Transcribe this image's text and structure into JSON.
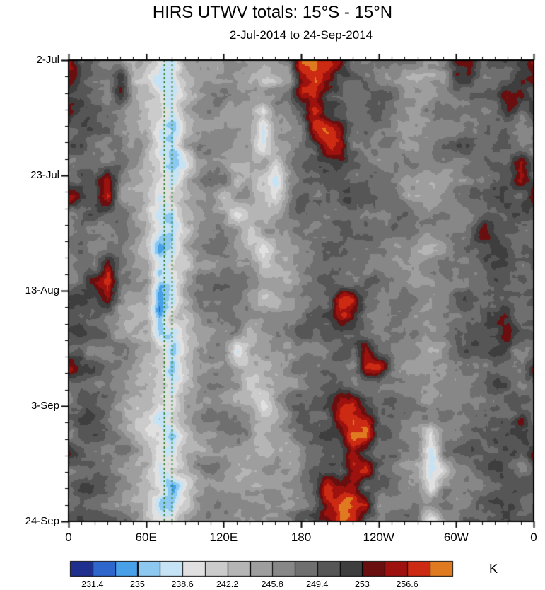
{
  "chart_data": {
    "type": "heatmap",
    "title": "HIRS UTWV totals: 15°S - 15°N",
    "subtitle": "2-Jul-2014 to 24-Sep-2014",
    "units": "K",
    "x_ticks": [
      "0",
      "60E",
      "120E",
      "180",
      "120W",
      "60W",
      "0"
    ],
    "x_minor_per_major": 6,
    "y_ticks": [
      "2-Jul",
      "23-Jul",
      "13-Aug",
      "3-Sep",
      "24-Sep"
    ],
    "y_minor_per_major": 7,
    "levels_min": 229.6,
    "levels_step": 1.8,
    "colorbar_labels": [
      "231.4",
      "235",
      "238.6",
      "242.2",
      "245.8",
      "249.4",
      "253",
      "256.6"
    ],
    "colors": [
      "#1e2f8e",
      "#2e66cc",
      "#47a0e8",
      "#8cc8f0",
      "#c6e3f5",
      "#e0e0e0",
      "#cbcbcb",
      "#b5b5b5",
      "#9e9e9e",
      "#878787",
      "#6f6f6f",
      "#565656",
      "#3e3e3e",
      "#6a0f0f",
      "#9d120e",
      "#cc2a12",
      "#e07a20"
    ],
    "reference_lines": {
      "color": "#267d26",
      "style": "dashed",
      "longitudes_deg": [
        74,
        80
      ]
    },
    "grid": {
      "cols": 36,
      "rows": 28,
      "lon_range_deg": [
        0,
        360
      ],
      "time_range": [
        "2-Jul-2014",
        "24-Sep-2014"
      ],
      "values_K": [
        [
          256,
          250,
          249,
          248,
          247,
          245,
          243,
          238,
          237,
          243,
          246,
          247,
          247,
          246,
          245,
          244,
          245,
          246,
          257,
          258,
          257,
          255,
          249,
          249,
          248,
          248,
          247,
          246,
          246,
          247,
          254,
          256,
          249,
          250,
          250,
          252
        ],
        [
          255,
          250,
          249,
          248,
          255,
          245,
          243,
          239,
          238,
          243,
          246,
          247,
          247,
          246,
          245,
          244,
          245,
          246,
          256,
          257,
          256,
          250,
          249,
          249,
          248,
          248,
          247,
          246,
          246,
          247,
          253,
          254,
          249,
          250,
          250,
          255
        ],
        [
          249,
          250,
          249,
          248,
          254,
          245,
          243,
          241,
          240,
          243,
          246,
          247,
          247,
          246,
          245,
          244,
          245,
          246,
          254,
          256,
          250,
          250,
          249,
          249,
          248,
          248,
          247,
          246,
          246,
          247,
          248,
          249,
          249,
          250,
          255,
          256
        ],
        [
          254,
          250,
          249,
          248,
          247,
          245,
          243,
          241,
          238,
          243,
          246,
          247,
          247,
          246,
          245,
          239,
          245,
          246,
          248,
          255,
          250,
          250,
          249,
          249,
          248,
          248,
          247,
          246,
          246,
          247,
          248,
          249,
          249,
          250,
          254,
          249
        ],
        [
          249,
          250,
          249,
          248,
          247,
          245,
          243,
          239,
          236,
          243,
          246,
          247,
          247,
          246,
          245,
          238,
          245,
          246,
          248,
          256,
          256,
          254,
          249,
          249,
          248,
          248,
          247,
          246,
          246,
          247,
          248,
          249,
          249,
          250,
          250,
          249
        ],
        [
          249,
          250,
          249,
          248,
          247,
          245,
          243,
          237,
          235,
          243,
          246,
          247,
          247,
          246,
          245,
          240,
          245,
          246,
          248,
          249,
          256,
          257,
          249,
          249,
          248,
          248,
          247,
          246,
          246,
          247,
          248,
          249,
          249,
          250,
          250,
          249
        ],
        [
          249,
          250,
          249,
          248,
          247,
          245,
          243,
          241,
          236,
          239,
          246,
          247,
          247,
          246,
          245,
          244,
          240,
          246,
          248,
          249,
          250,
          250,
          249,
          249,
          248,
          248,
          247,
          246,
          246,
          247,
          248,
          249,
          249,
          250,
          250,
          256
        ],
        [
          249,
          250,
          249,
          255,
          247,
          245,
          243,
          241,
          238,
          243,
          246,
          247,
          247,
          241,
          245,
          244,
          239,
          246,
          248,
          249,
          250,
          250,
          249,
          249,
          248,
          248,
          247,
          246,
          246,
          247,
          248,
          249,
          249,
          250,
          250,
          255
        ],
        [
          255,
          250,
          249,
          256,
          247,
          245,
          243,
          237,
          241,
          243,
          246,
          247,
          242,
          246,
          245,
          244,
          241,
          246,
          248,
          249,
          250,
          250,
          249,
          249,
          248,
          248,
          247,
          246,
          246,
          247,
          248,
          249,
          249,
          250,
          250,
          249
        ],
        [
          249,
          250,
          249,
          248,
          247,
          245,
          243,
          239,
          236,
          243,
          246,
          247,
          247,
          240,
          245,
          244,
          245,
          246,
          248,
          249,
          250,
          250,
          249,
          249,
          248,
          248,
          247,
          246,
          246,
          247,
          248,
          249,
          249,
          250,
          250,
          249
        ],
        [
          249,
          250,
          249,
          248,
          247,
          245,
          243,
          238,
          237,
          243,
          246,
          247,
          247,
          246,
          241,
          244,
          245,
          246,
          248,
          249,
          250,
          250,
          249,
          249,
          248,
          248,
          247,
          246,
          246,
          247,
          248,
          249,
          255,
          250,
          250,
          249
        ],
        [
          249,
          250,
          249,
          248,
          247,
          245,
          243,
          235,
          237,
          243,
          246,
          247,
          247,
          246,
          245,
          241,
          245,
          246,
          248,
          249,
          250,
          250,
          249,
          249,
          248,
          248,
          247,
          246,
          246,
          247,
          248,
          249,
          249,
          250,
          250,
          249
        ],
        [
          249,
          250,
          249,
          257,
          247,
          245,
          243,
          236,
          241,
          243,
          246,
          247,
          247,
          246,
          245,
          240,
          242,
          246,
          248,
          249,
          250,
          250,
          249,
          249,
          248,
          248,
          247,
          246,
          246,
          247,
          248,
          249,
          249,
          250,
          250,
          249
        ],
        [
          249,
          250,
          254,
          257,
          247,
          245,
          243,
          234,
          236,
          243,
          246,
          247,
          247,
          246,
          245,
          244,
          245,
          246,
          248,
          249,
          250,
          250,
          249,
          249,
          248,
          248,
          247,
          246,
          246,
          247,
          248,
          249,
          249,
          250,
          250,
          249
        ],
        [
          249,
          250,
          249,
          255,
          247,
          245,
          243,
          232,
          235,
          243,
          246,
          247,
          247,
          246,
          245,
          244,
          245,
          246,
          248,
          249,
          250,
          258,
          256,
          249,
          248,
          248,
          247,
          246,
          246,
          247,
          248,
          249,
          249,
          250,
          250,
          249
        ],
        [
          249,
          250,
          249,
          248,
          247,
          245,
          243,
          234,
          241,
          243,
          246,
          247,
          247,
          246,
          245,
          244,
          245,
          246,
          248,
          249,
          250,
          257,
          255,
          249,
          248,
          248,
          247,
          246,
          246,
          247,
          248,
          249,
          249,
          253,
          254,
          249
        ],
        [
          249,
          250,
          249,
          248,
          247,
          245,
          243,
          237,
          238,
          243,
          246,
          247,
          247,
          246,
          240,
          244,
          245,
          246,
          248,
          249,
          250,
          250,
          249,
          249,
          248,
          248,
          247,
          246,
          246,
          247,
          248,
          249,
          249,
          250,
          254,
          249
        ],
        [
          249,
          250,
          249,
          248,
          247,
          245,
          243,
          241,
          237,
          243,
          246,
          247,
          247,
          239,
          245,
          244,
          245,
          246,
          248,
          249,
          250,
          250,
          249,
          255,
          248,
          248,
          247,
          246,
          246,
          247,
          248,
          249,
          249,
          250,
          250,
          249
        ],
        [
          255,
          250,
          249,
          248,
          247,
          245,
          243,
          241,
          236,
          243,
          246,
          247,
          247,
          246,
          245,
          244,
          245,
          246,
          248,
          249,
          250,
          250,
          249,
          256,
          255,
          248,
          247,
          246,
          246,
          247,
          248,
          249,
          249,
          250,
          250,
          249
        ],
        [
          249,
          250,
          249,
          248,
          247,
          245,
          243,
          241,
          238,
          243,
          246,
          247,
          247,
          246,
          241,
          244,
          245,
          246,
          248,
          249,
          250,
          250,
          249,
          249,
          248,
          248,
          247,
          246,
          246,
          247,
          248,
          249,
          249,
          250,
          250,
          249
        ],
        [
          249,
          250,
          249,
          248,
          247,
          245,
          243,
          241,
          237,
          243,
          246,
          247,
          247,
          246,
          245,
          240,
          245,
          246,
          248,
          249,
          250,
          255,
          256,
          249,
          248,
          248,
          247,
          246,
          246,
          247,
          248,
          249,
          249,
          250,
          250,
          249
        ],
        [
          249,
          250,
          249,
          248,
          247,
          245,
          243,
          238,
          241,
          243,
          246,
          247,
          247,
          246,
          245,
          244,
          245,
          246,
          248,
          249,
          250,
          256,
          257,
          256,
          248,
          248,
          247,
          246,
          246,
          247,
          248,
          249,
          249,
          250,
          250,
          255
        ],
        [
          249,
          250,
          249,
          248,
          247,
          245,
          243,
          241,
          236,
          243,
          246,
          247,
          247,
          246,
          245,
          244,
          245,
          246,
          248,
          249,
          250,
          250,
          257,
          257,
          248,
          248,
          247,
          246,
          239,
          247,
          248,
          249,
          249,
          250,
          250,
          249
        ],
        [
          254,
          250,
          249,
          248,
          247,
          245,
          243,
          241,
          238,
          243,
          246,
          247,
          247,
          246,
          245,
          244,
          245,
          246,
          248,
          249,
          250,
          250,
          256,
          249,
          248,
          248,
          247,
          246,
          238,
          247,
          248,
          249,
          249,
          250,
          250,
          249
        ],
        [
          249,
          250,
          249,
          248,
          247,
          245,
          243,
          237,
          241,
          243,
          246,
          247,
          247,
          246,
          245,
          244,
          245,
          246,
          248,
          249,
          250,
          250,
          256,
          257,
          248,
          248,
          247,
          246,
          239,
          241,
          248,
          249,
          249,
          250,
          250,
          249
        ],
        [
          249,
          250,
          249,
          248,
          247,
          245,
          243,
          241,
          236,
          243,
          246,
          247,
          247,
          246,
          245,
          244,
          245,
          246,
          248,
          249,
          256,
          257,
          258,
          249,
          248,
          248,
          247,
          246,
          238,
          247,
          248,
          249,
          249,
          250,
          250,
          249
        ],
        [
          249,
          250,
          249,
          248,
          247,
          245,
          243,
          235,
          237,
          243,
          246,
          247,
          247,
          246,
          245,
          244,
          245,
          246,
          248,
          249,
          257,
          258,
          257,
          256,
          248,
          248,
          247,
          246,
          246,
          247,
          248,
          249,
          249,
          250,
          250,
          249
        ],
        [
          249,
          250,
          249,
          248,
          247,
          245,
          243,
          241,
          238,
          243,
          246,
          247,
          247,
          246,
          245,
          244,
          245,
          246,
          248,
          249,
          250,
          257,
          256,
          249,
          248,
          248,
          247,
          246,
          240,
          247,
          248,
          249,
          249,
          250,
          250,
          249
        ]
      ]
    }
  }
}
